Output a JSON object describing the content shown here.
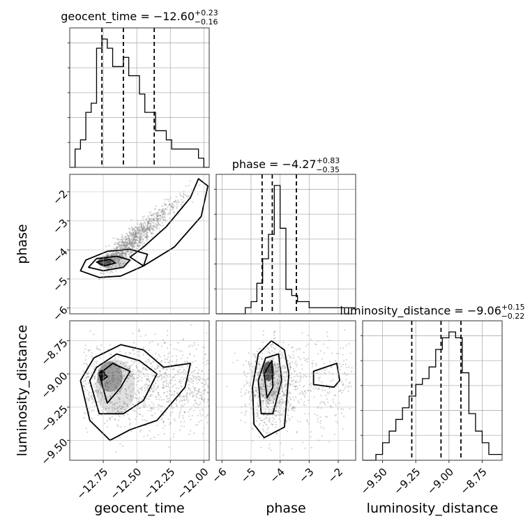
{
  "chart_data": {
    "type": "corner",
    "parameters": [
      "geocent_time",
      "phase",
      "luminosity_distance"
    ],
    "titles": {
      "geocent_time": {
        "name": "geocent_time",
        "median": "−12.60",
        "plus": "+0.23",
        "minus": "−0.16"
      },
      "phase": {
        "name": "phase",
        "median": "−4.27",
        "plus": "+0.83",
        "minus": "−0.35"
      },
      "luminosity_distance": {
        "name": "luminosity_distance",
        "median": "−9.06",
        "plus": "+0.15",
        "minus": "−0.22"
      }
    },
    "ranges": {
      "geocent_time": [
        -13.0,
        -11.96
      ],
      "phase": [
        -6.2,
        -1.4
      ],
      "luminosity_distance": [
        -9.65,
        -8.6
      ]
    },
    "ticks": {
      "geocent_time": {
        "values": [
          -12.75,
          -12.5,
          -12.25,
          -12.0
        ],
        "labels": [
          "−12.75",
          "−12.50",
          "−12.25",
          "−12.00"
        ]
      },
      "phase": {
        "values": [
          -6,
          -5,
          -4,
          -3,
          -2
        ],
        "labels": [
          "−6",
          "−5",
          "−4",
          "−3",
          "−2"
        ]
      },
      "luminosity_distance": {
        "values": [
          -9.5,
          -9.25,
          -9.0,
          -8.75
        ],
        "labels": [
          "−9.50",
          "−9.25",
          "−9.00",
          "−8.75"
        ]
      }
    },
    "quantiles": {
      "geocent_time": [
        -12.76,
        -12.6,
        -12.37
      ],
      "phase": [
        -4.62,
        -4.27,
        -3.44
      ],
      "luminosity_distance": [
        -9.28,
        -9.06,
        -8.91
      ]
    },
    "histograms": {
      "geocent_time": {
        "edges": [
          -13.0,
          -12.96,
          -12.92,
          -12.88,
          -12.84,
          -12.8,
          -12.76,
          -12.72,
          -12.68,
          -12.64,
          -12.6,
          -12.56,
          -12.52,
          -12.48,
          -12.44,
          -12.4,
          -12.36,
          -12.32,
          -12.28,
          -12.24,
          -12.2,
          -12.16,
          -12.12,
          -12.08,
          -12.04,
          -12.0,
          -11.96
        ],
        "counts": [
          0,
          2,
          3,
          6,
          7,
          13,
          14,
          13,
          11,
          11,
          12,
          10,
          10,
          8,
          6,
          6,
          4,
          4,
          3,
          2,
          2,
          2,
          2,
          2,
          1,
          0
        ]
      },
      "phase": {
        "edges": [
          -6.2,
          -6.0,
          -5.8,
          -5.6,
          -5.4,
          -5.2,
          -5.0,
          -4.8,
          -4.6,
          -4.4,
          -4.2,
          -4.0,
          -3.8,
          -3.6,
          -3.4,
          -3.2,
          -3.0,
          -2.8,
          -2.6,
          -2.4,
          -2.2,
          -2.0,
          -1.8,
          -1.6,
          -1.4
        ],
        "counts": [
          0,
          0,
          0,
          0,
          0,
          1,
          2,
          5,
          9,
          13,
          21,
          14,
          4,
          3,
          2,
          2,
          1,
          1,
          1,
          1,
          1,
          1,
          1,
          1
        ]
      },
      "luminosity_distance": {
        "edges": [
          -9.65,
          -9.6,
          -9.55,
          -9.5,
          -9.45,
          -9.4,
          -9.35,
          -9.3,
          -9.25,
          -9.2,
          -9.15,
          -9.1,
          -9.05,
          -9.0,
          -8.95,
          -8.9,
          -8.85,
          -8.8,
          -8.75,
          -8.7,
          -8.65,
          -8.6
        ],
        "counts": [
          0,
          0,
          1,
          3,
          5,
          7,
          9,
          11,
          13,
          14,
          16,
          19,
          21,
          22,
          21,
          15,
          8,
          5,
          3,
          1,
          1
        ]
      }
    },
    "grid": true,
    "scatter_color": "#808080",
    "contour_color": "#000000"
  }
}
